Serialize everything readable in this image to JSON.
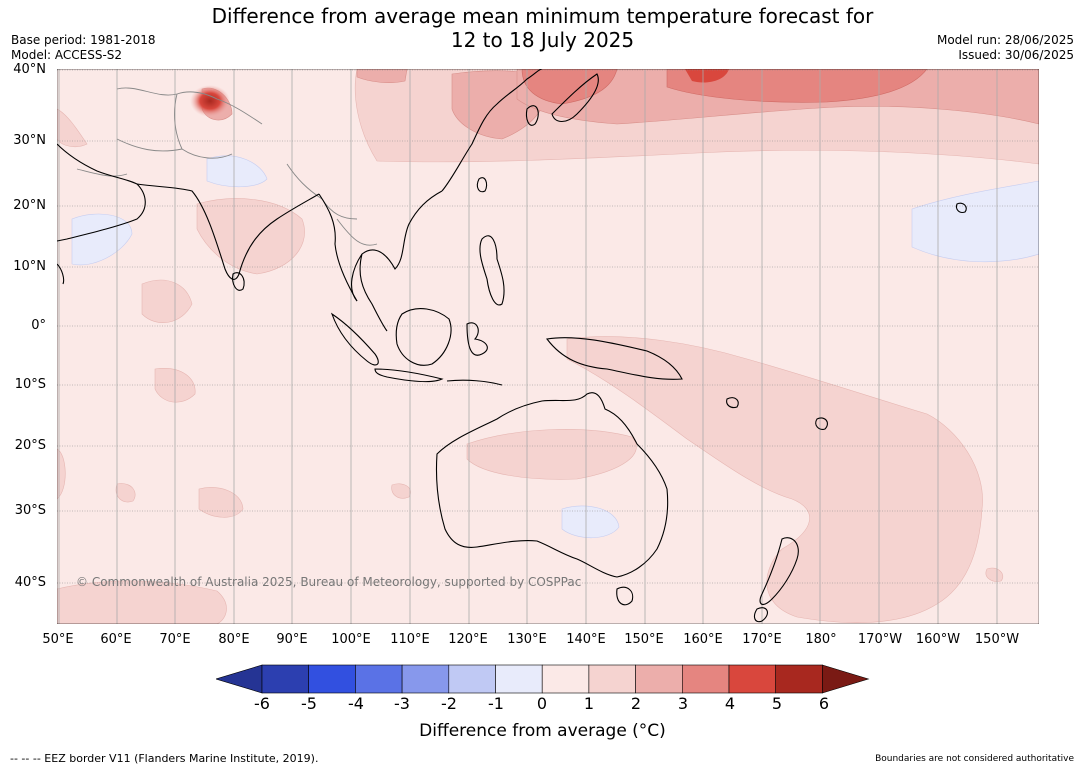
{
  "title": {
    "line1": "Difference from average mean minimum temperature forecast for",
    "line2": "12 to 18 July 2025"
  },
  "meta": {
    "base_period": "Base period: 1981-2018",
    "model": "Model: ACCESS-S2",
    "model_run": "Model run: 28/06/2025",
    "issued": "Issued: 30/06/2025"
  },
  "map": {
    "latitude_labels": [
      "40°N",
      "30°N",
      "20°N",
      "10°N",
      "0°",
      "10°S",
      "20°S",
      "30°S",
      "40°S"
    ],
    "longitude_labels": [
      "50°E",
      "60°E",
      "70°E",
      "80°E",
      "90°E",
      "100°E",
      "110°E",
      "120°E",
      "130°E",
      "140°E",
      "150°E",
      "160°E",
      "170°E",
      "180°",
      "170°W",
      "160°W",
      "150°W"
    ],
    "copyright": "© Commonwealth of Australia 2025, Bureau of Meteorology, supported by COSPPac",
    "land_outline_color": "#000000",
    "border_color": "#888888",
    "grid_color": "#888888"
  },
  "colorbar": {
    "label": "Difference from average (°C)",
    "ticks": [
      "-6",
      "-5",
      "-4",
      "-3",
      "-2",
      "-1",
      "0",
      "1",
      "2",
      "3",
      "4",
      "5",
      "6"
    ],
    "colors": [
      "#253494",
      "#2c3fb0",
      "#3250e0",
      "#5a72e6",
      "#8798ec",
      "#c0c9f4",
      "#e8ebfb",
      "#fbe9e7",
      "#f5d3d0",
      "#ecaeab",
      "#e58580",
      "#d9473d",
      "#a8281f",
      "#7a1a14"
    ]
  },
  "footer": {
    "eez_legend": "--  --  -- EEZ border V11 (Flanders Marine Institute, 2019).",
    "disclaimer": "Boundaries are not considered authoritative"
  }
}
